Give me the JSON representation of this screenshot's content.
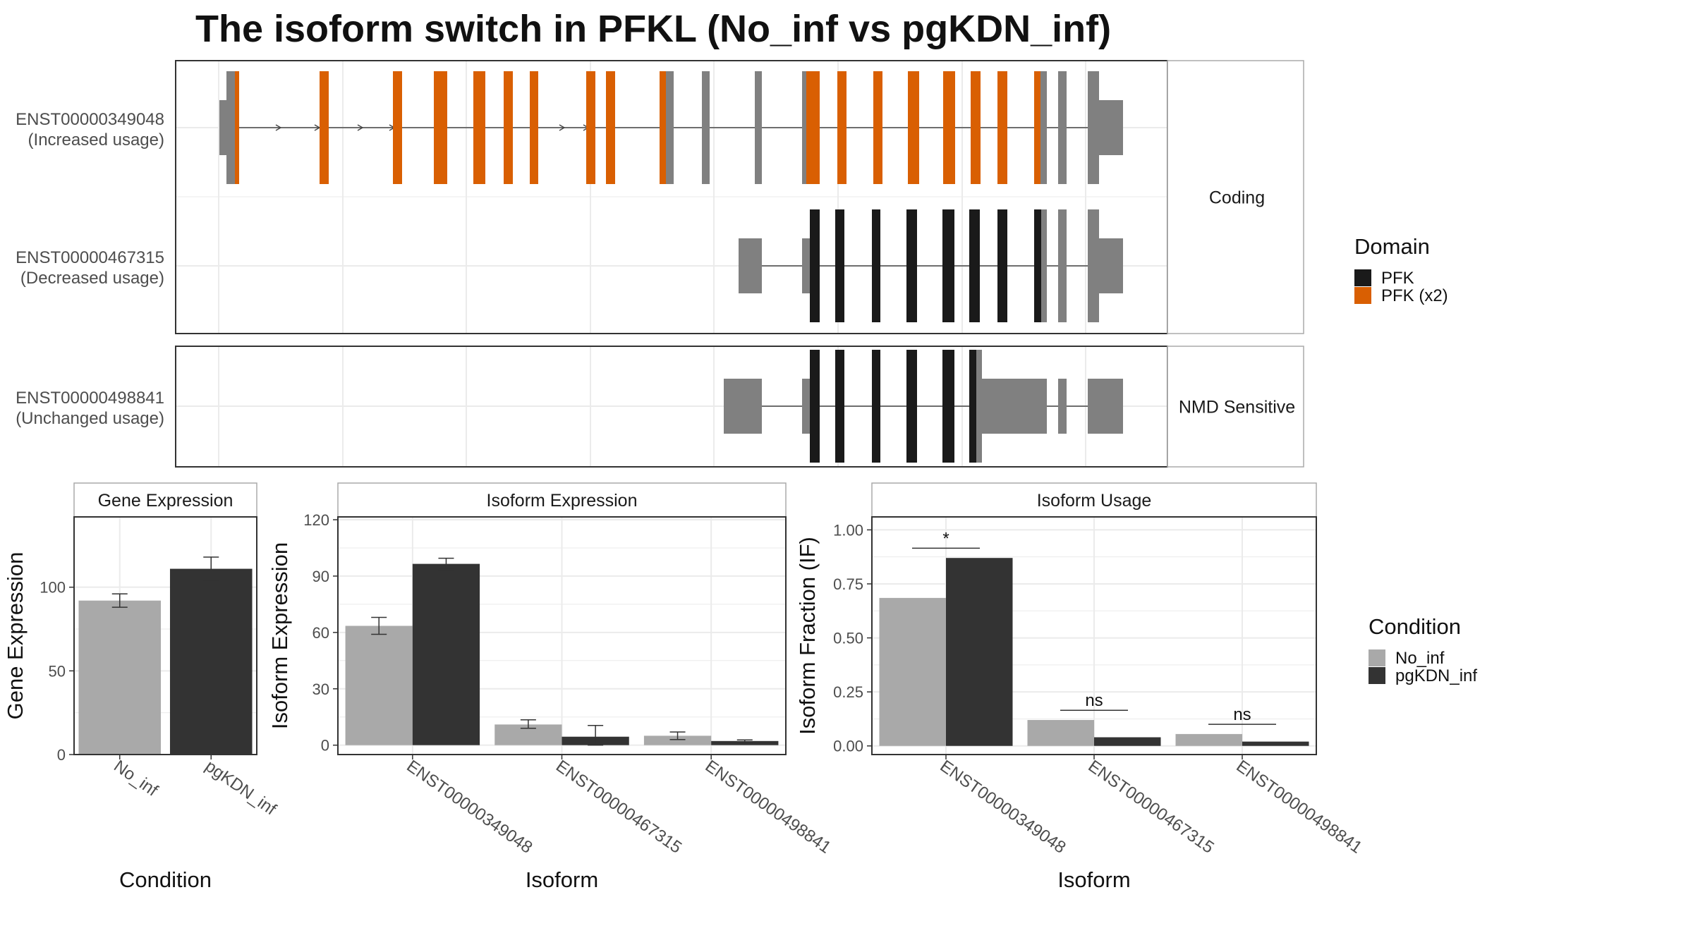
{
  "title": "The isoform switch in PFKL (No_inf vs pgKDN_inf)",
  "colors": {
    "pfk": "#1a1a1a",
    "pfk_x2": "#d95f02",
    "utr": "#808080",
    "no_inf": "#a9a9a9",
    "pgkdn_inf": "#333333",
    "grid": "#ebebeb",
    "panel_border": "#333333",
    "strip_border": "#aaaaaa"
  },
  "transcripts": [
    {
      "id": "ENST00000349048",
      "usage": "(Increased usage)",
      "category": "Coding"
    },
    {
      "id": "ENST00000467315",
      "usage": "(Decreased usage)",
      "category": "Coding"
    },
    {
      "id": "ENST00000498841",
      "usage": "(Unchanged usage)",
      "category": "NMD Sensitive"
    }
  ],
  "categories": [
    "Coding",
    "NMD Sensitive"
  ],
  "domain_legend": {
    "title": "Domain",
    "items": [
      "PFK",
      "PFK (x2)"
    ]
  },
  "condition_legend": {
    "title": "Condition",
    "items": [
      "No_inf",
      "pgKDN_inf"
    ]
  },
  "chart_data": [
    {
      "type": "bar",
      "title": "Gene Expression",
      "xlabel": "Condition",
      "ylabel": "Gene Expression",
      "categories": [
        "No_inf",
        "pgKDN_inf"
      ],
      "values": [
        92,
        111
      ],
      "errors": [
        [
          88,
          96
        ],
        [
          104,
          118
        ]
      ],
      "yticks": [
        0,
        50,
        100
      ],
      "ylim": [
        0,
        142
      ]
    },
    {
      "type": "bar",
      "title": "Isoform Expression",
      "xlabel": "Isoform",
      "ylabel": "Isoform Expression",
      "categories": [
        "ENST00000349048",
        "ENST00000467315",
        "ENST00000498841"
      ],
      "series": [
        {
          "name": "No_inf",
          "values": [
            63.5,
            11,
            5
          ],
          "errors": [
            [
              59,
              68
            ],
            [
              9,
              13.5
            ],
            [
              3,
              7
            ]
          ]
        },
        {
          "name": "pgKDN_inf",
          "values": [
            96.5,
            4.5,
            2.2
          ],
          "errors": [
            [
              93.5,
              99.5
            ],
            [
              0,
              10.5
            ],
            [
              1.6,
              2.8
            ]
          ]
        }
      ],
      "yticks": [
        0,
        30,
        60,
        90,
        120
      ],
      "ylim": [
        -5,
        121.5
      ]
    },
    {
      "type": "bar",
      "title": "Isoform Usage",
      "xlabel": "Isoform",
      "ylabel": "Isoform Fraction (IF)",
      "categories": [
        "ENST00000349048",
        "ENST00000467315",
        "ENST00000498841"
      ],
      "series": [
        {
          "name": "No_inf",
          "values": [
            0.685,
            0.12,
            0.055
          ]
        },
        {
          "name": "pgKDN_inf",
          "values": [
            0.87,
            0.04,
            0.02
          ]
        }
      ],
      "significance": [
        "*",
        "ns",
        "ns"
      ],
      "yticks": [
        "0.00",
        "0.25",
        "0.50",
        "0.75",
        "1.00"
      ],
      "ylim": [
        -0.04,
        1.06
      ]
    }
  ]
}
